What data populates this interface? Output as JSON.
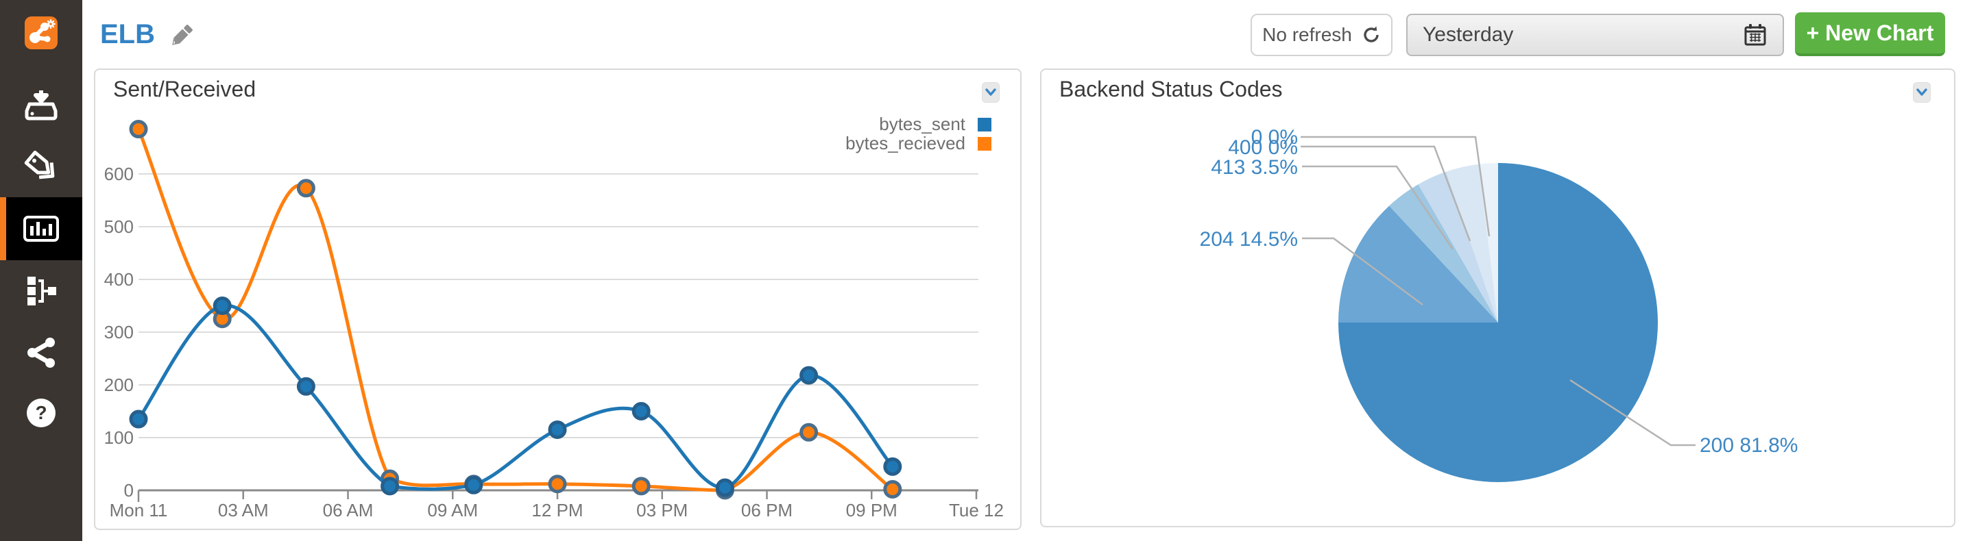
{
  "sidebar": {
    "items": [
      {
        "name": "logo"
      },
      {
        "name": "downloads"
      },
      {
        "name": "tags"
      },
      {
        "name": "charts",
        "active": true
      },
      {
        "name": "pipeline"
      },
      {
        "name": "share"
      },
      {
        "name": "help"
      }
    ]
  },
  "header": {
    "title": "ELB"
  },
  "toolbar": {
    "refresh": {
      "label": "No refresh"
    },
    "date_picker": {
      "value": "Yesterday"
    },
    "new_chart": {
      "label": "+ New Chart"
    }
  },
  "charts": {
    "line": {
      "title": "Sent/Received",
      "legend": [
        {
          "label": "bytes_sent",
          "color": "#1f77b4"
        },
        {
          "label": "bytes_recieved",
          "color": "#ff7f0e"
        }
      ]
    },
    "pie": {
      "title": "Backend Status Codes",
      "labels_display": [
        "0 0%",
        "400 0%",
        "413 3.5%",
        "204 14.5%",
        "200 81.8%"
      ]
    }
  },
  "chart_data": [
    {
      "type": "line",
      "title": "Sent/Received",
      "x_tick_labels": [
        "Mon 11",
        "03 AM",
        "06 AM",
        "09 AM",
        "12 PM",
        "03 PM",
        "06 PM",
        "09 PM",
        "Tue 12"
      ],
      "x_hours": [
        0,
        2.4,
        4.8,
        7.2,
        9.6,
        12,
        14.4,
        16.8,
        19.2,
        21.6
      ],
      "x_range_hours": [
        0,
        24
      ],
      "ylim": [
        0,
        700
      ],
      "y_ticks": [
        0,
        100,
        200,
        300,
        400,
        500,
        600
      ],
      "grid": true,
      "legend_position": "top-right",
      "series": [
        {
          "name": "bytes_sent",
          "color": "#1f77b4",
          "point_stroke": "#265f8c",
          "values": [
            135,
            350,
            197,
            8,
            10,
            115,
            150,
            5,
            218,
            45
          ]
        },
        {
          "name": "bytes_recieved",
          "color": "#ff7f0e",
          "point_stroke": "#4b6e8c",
          "values": [
            685,
            325,
            573,
            22,
            12,
            12,
            8,
            0,
            110,
            2
          ]
        }
      ]
    },
    {
      "type": "pie",
      "title": "Backend Status Codes",
      "labels": [
        "200",
        "204",
        "413",
        "400",
        "0"
      ],
      "values": [
        81.8,
        14.5,
        3.5,
        0,
        0
      ],
      "pct_labels": [
        "81.8%",
        "14.5%",
        "3.5%",
        "0%",
        "0%"
      ],
      "colors": [
        "#428cc3",
        "#6ba6d4",
        "#9dc7e2",
        "#c6dbef",
        "#d9e7f4"
      ],
      "label_color": "#3d87c3",
      "legend_position": "none",
      "drawn_angles_deg": [
        [
          0,
          270
        ],
        [
          270,
          317
        ],
        [
          317,
          330
        ],
        [
          330,
          341
        ],
        [
          341,
          353
        ]
      ],
      "filler_slice": {
        "angles_deg": [
          353,
          360
        ],
        "color": "#e9f1f9"
      }
    }
  ]
}
